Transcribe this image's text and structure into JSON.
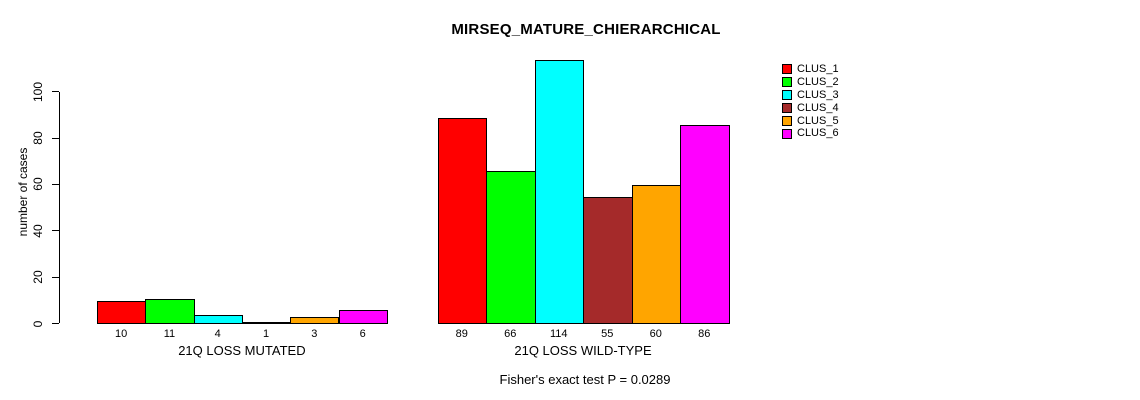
{
  "chart_data": {
    "type": "bar",
    "title": "MIRSEQ_MATURE_CHIERARCHICAL",
    "ylabel": "number of cases",
    "xlabel": "",
    "yticks": [
      0,
      20,
      40,
      60,
      80,
      100
    ],
    "ylim": [
      0,
      115
    ],
    "grid": false,
    "legend_position": "top-right",
    "annotation": "Fisher's exact test P = 0.0289",
    "bar_colors": [
      "#FF0000",
      "#00FF00",
      "#00FFFF",
      "#A52A2A",
      "#FFA500",
      "#FF00FF"
    ],
    "legend": [
      {
        "label": "CLUS_1",
        "color": "#FF0000"
      },
      {
        "label": "CLUS_2",
        "color": "#00FF00"
      },
      {
        "label": "CLUS_3",
        "color": "#00FFFF"
      },
      {
        "label": "CLUS_4",
        "color": "#A52A2A"
      },
      {
        "label": "CLUS_5",
        "color": "#FFA500"
      },
      {
        "label": "CLUS_6",
        "color": "#FF00FF"
      }
    ],
    "groups": [
      {
        "label": "21Q LOSS MUTATED",
        "values": [
          10,
          11,
          4,
          1,
          3,
          6
        ]
      },
      {
        "label": "21Q LOSS WILD-TYPE",
        "values": [
          89,
          66,
          114,
          55,
          60,
          86
        ]
      }
    ]
  }
}
